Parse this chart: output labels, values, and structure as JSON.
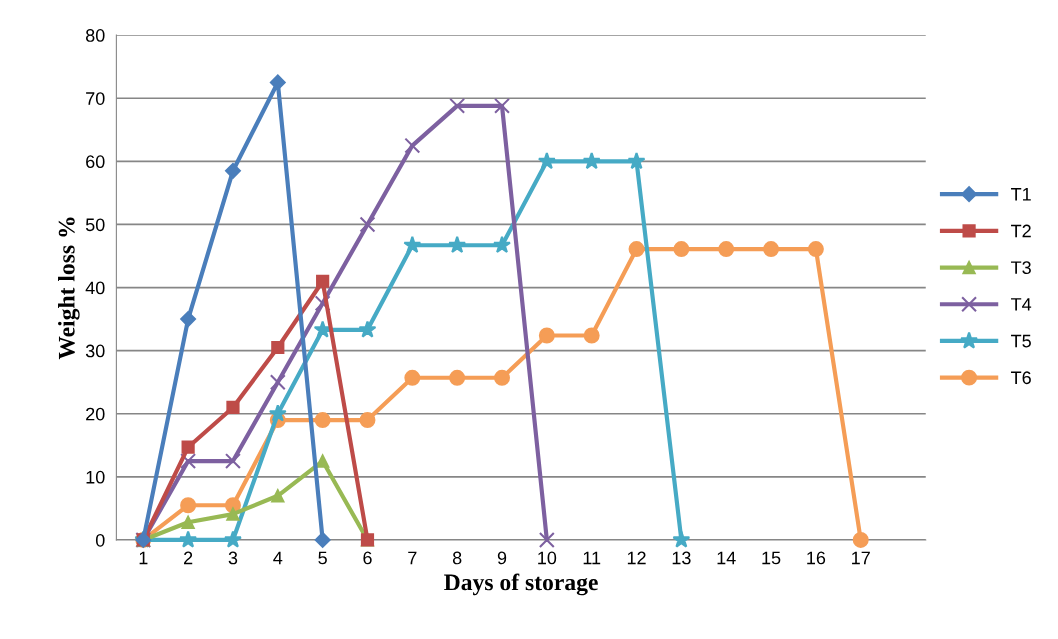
{
  "chart_data": {
    "type": "line",
    "xlabel": "Days of storage",
    "ylabel": "Weight loss %",
    "categories": [
      "1",
      "2",
      "3",
      "4",
      "5",
      "6",
      "7",
      "8",
      "9",
      "10",
      "11",
      "12",
      "13",
      "14",
      "15",
      "16",
      "17"
    ],
    "series": [
      {
        "name": "T1",
        "color": "#4a7ebb",
        "marker": "diamond",
        "values": [
          0,
          35,
          58.5,
          72.5,
          0,
          null,
          null,
          null,
          null,
          null,
          null,
          null,
          null,
          null,
          null,
          null,
          null
        ]
      },
      {
        "name": "T2",
        "color": "#be4b48",
        "marker": "square",
        "values": [
          0,
          14.7,
          21,
          30.5,
          41,
          0,
          null,
          null,
          null,
          null,
          null,
          null,
          null,
          null,
          null,
          null,
          null
        ]
      },
      {
        "name": "T3",
        "color": "#98b954",
        "marker": "triangle",
        "values": [
          0,
          2.8,
          4.1,
          7,
          12.5,
          0,
          null,
          null,
          null,
          null,
          null,
          null,
          null,
          null,
          null,
          null,
          null
        ]
      },
      {
        "name": "T4",
        "color": "#7d60a0",
        "marker": "cross",
        "values": [
          0,
          12.5,
          12.5,
          25,
          37.5,
          50,
          62.5,
          68.8,
          68.8,
          0,
          null,
          null,
          null,
          null,
          null,
          null,
          null
        ]
      },
      {
        "name": "T5",
        "color": "#46aac5",
        "marker": "star",
        "values": [
          0,
          0,
          0,
          20,
          33.3,
          33.3,
          46.7,
          46.7,
          46.7,
          60,
          60,
          60,
          0,
          null,
          null,
          null,
          null
        ]
      },
      {
        "name": "T6",
        "color": "#f59d56",
        "marker": "circle",
        "values": [
          0,
          5.5,
          5.5,
          19,
          19,
          19,
          25.7,
          25.7,
          25.7,
          32.4,
          32.4,
          46.1,
          46.1,
          46.1,
          46.1,
          46.1,
          0
        ]
      }
    ],
    "ylim": [
      0,
      80
    ],
    "yticks": [
      0,
      10,
      20,
      30,
      40,
      50,
      60,
      70,
      80
    ],
    "grid": "y",
    "legend": "right"
  }
}
